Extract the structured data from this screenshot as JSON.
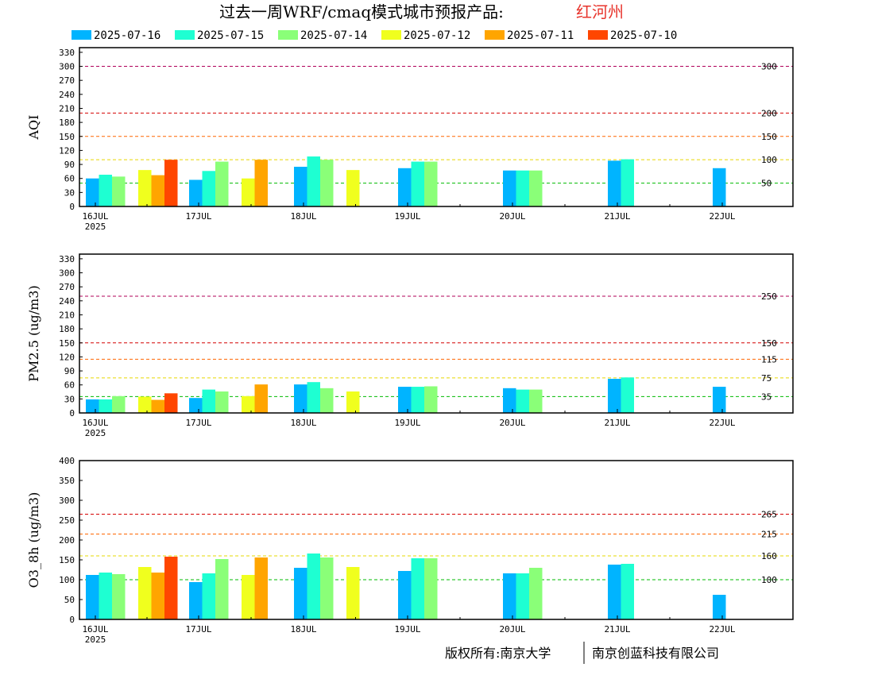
{
  "header": {
    "title": "过去一周WRF/cmaq模式城市预报产品:",
    "city": "红河州",
    "city_color": "#e8342c"
  },
  "legend": [
    {
      "label": "2025-07-16",
      "color": "#00b4ff"
    },
    {
      "label": "2025-07-15",
      "color": "#1effd2"
    },
    {
      "label": "2025-07-14",
      "color": "#8aff78"
    },
    {
      "label": "2025-07-12",
      "color": "#f0ff1e"
    },
    {
      "label": "2025-07-11",
      "color": "#ffa500"
    },
    {
      "label": "2025-07-10",
      "color": "#ff4600"
    }
  ],
  "footer": {
    "left": "版权所有:南京大学",
    "right": "南京创蓝科技有限公司"
  },
  "chart_data": [
    {
      "type": "bar",
      "ylabel": "AQI",
      "ylim": [
        0,
        340
      ],
      "yticks": [
        0,
        30,
        60,
        90,
        120,
        150,
        180,
        210,
        240,
        270,
        300,
        330
      ],
      "date_labels": [
        "16JUL",
        "17JUL",
        "18JUL",
        "19JUL",
        "20JUL",
        "21JUL",
        "22JUL"
      ],
      "year_label": "2025",
      "thresholds": [
        {
          "value": 300,
          "label": "300",
          "color": "#b0005a"
        },
        {
          "value": 200,
          "label": "200",
          "color": "#d40000"
        },
        {
          "value": 150,
          "label": "150",
          "color": "#ff6600"
        },
        {
          "value": 100,
          "label": "100",
          "color": "#e6d800"
        },
        {
          "value": 50,
          "label": "50",
          "color": "#00bb00"
        }
      ],
      "groups": [
        {
          "day": 0,
          "slot": 0,
          "values": [
            60,
            68,
            64,
            null,
            null,
            null
          ]
        },
        {
          "day": 0,
          "slot": 1,
          "values": [
            null,
            null,
            null,
            78,
            67,
            100
          ]
        },
        {
          "day": 1,
          "slot": 0,
          "values": [
            57,
            76,
            96,
            null,
            null,
            null
          ]
        },
        {
          "day": 1,
          "slot": 1,
          "values": [
            null,
            null,
            null,
            60,
            100,
            null
          ]
        },
        {
          "day": 2,
          "slot": 0,
          "values": [
            85,
            107,
            100,
            null,
            null,
            null
          ]
        },
        {
          "day": 2,
          "slot": 1,
          "values": [
            null,
            null,
            null,
            78,
            null,
            null
          ]
        },
        {
          "day": 3,
          "slot": 0,
          "values": [
            82,
            96,
            96,
            null,
            null,
            null
          ]
        },
        {
          "day": 4,
          "slot": 0,
          "values": [
            77,
            77,
            77,
            null,
            null,
            null
          ]
        },
        {
          "day": 5,
          "slot": 0,
          "values": [
            98,
            101,
            null,
            null,
            null,
            null
          ]
        },
        {
          "day": 6,
          "slot": 0,
          "values": [
            82,
            null,
            null,
            null,
            null,
            null
          ]
        }
      ]
    },
    {
      "type": "bar",
      "ylabel": "PM2.5 (ug/m3)",
      "ylim": [
        0,
        340
      ],
      "yticks": [
        0,
        30,
        60,
        90,
        120,
        150,
        180,
        210,
        240,
        270,
        300,
        330
      ],
      "date_labels": [
        "16JUL",
        "17JUL",
        "18JUL",
        "19JUL",
        "20JUL",
        "21JUL",
        "22JUL"
      ],
      "year_label": "2025",
      "thresholds": [
        {
          "value": 250,
          "label": "250",
          "color": "#b0005a"
        },
        {
          "value": 150,
          "label": "150",
          "color": "#d40000"
        },
        {
          "value": 115,
          "label": "115",
          "color": "#ff6600"
        },
        {
          "value": 75,
          "label": "75",
          "color": "#e6d800"
        },
        {
          "value": 35,
          "label": "35",
          "color": "#00bb00"
        }
      ],
      "groups": [
        {
          "day": 0,
          "slot": 0,
          "values": [
            29,
            29,
            36,
            null,
            null,
            null
          ]
        },
        {
          "day": 0,
          "slot": 1,
          "values": [
            null,
            null,
            null,
            35,
            28,
            42
          ]
        },
        {
          "day": 1,
          "slot": 0,
          "values": [
            32,
            50,
            46,
            null,
            null,
            null
          ]
        },
        {
          "day": 1,
          "slot": 1,
          "values": [
            null,
            null,
            null,
            36,
            61,
            null
          ]
        },
        {
          "day": 2,
          "slot": 0,
          "values": [
            61,
            66,
            53,
            null,
            null,
            null
          ]
        },
        {
          "day": 2,
          "slot": 1,
          "values": [
            null,
            null,
            null,
            46,
            null,
            null
          ]
        },
        {
          "day": 3,
          "slot": 0,
          "values": [
            56,
            56,
            57,
            null,
            null,
            null
          ]
        },
        {
          "day": 4,
          "slot": 0,
          "values": [
            53,
            50,
            50,
            null,
            null,
            null
          ]
        },
        {
          "day": 5,
          "slot": 0,
          "values": [
            73,
            76,
            null,
            null,
            null,
            null
          ]
        },
        {
          "day": 6,
          "slot": 0,
          "values": [
            56,
            null,
            null,
            null,
            null,
            null
          ]
        }
      ]
    },
    {
      "type": "bar",
      "ylabel": "O3_8h (ug/m3)",
      "ylim": [
        0,
        400
      ],
      "yticks": [
        0,
        50,
        100,
        150,
        200,
        250,
        300,
        350,
        400
      ],
      "date_labels": [
        "16JUL",
        "17JUL",
        "18JUL",
        "19JUL",
        "20JUL",
        "21JUL",
        "22JUL"
      ],
      "year_label": "2025",
      "thresholds": [
        {
          "value": 265,
          "label": "265",
          "color": "#d40000"
        },
        {
          "value": 215,
          "label": "215",
          "color": "#ff6600"
        },
        {
          "value": 160,
          "label": "160",
          "color": "#e6d800"
        },
        {
          "value": 100,
          "label": "100",
          "color": "#00bb00"
        }
      ],
      "groups": [
        {
          "day": 0,
          "slot": 0,
          "values": [
            112,
            118,
            114,
            null,
            null,
            null
          ]
        },
        {
          "day": 0,
          "slot": 1,
          "values": [
            null,
            null,
            null,
            132,
            118,
            158
          ]
        },
        {
          "day": 1,
          "slot": 0,
          "values": [
            94,
            116,
            152,
            null,
            null,
            null
          ]
        },
        {
          "day": 1,
          "slot": 1,
          "values": [
            null,
            null,
            null,
            112,
            156,
            null
          ]
        },
        {
          "day": 2,
          "slot": 0,
          "values": [
            130,
            166,
            156,
            null,
            null,
            null
          ]
        },
        {
          "day": 2,
          "slot": 1,
          "values": [
            null,
            null,
            null,
            132,
            null,
            null
          ]
        },
        {
          "day": 3,
          "slot": 0,
          "values": [
            122,
            154,
            154,
            null,
            null,
            null
          ]
        },
        {
          "day": 4,
          "slot": 0,
          "values": [
            116,
            116,
            130,
            null,
            null,
            null
          ]
        },
        {
          "day": 5,
          "slot": 0,
          "values": [
            138,
            140,
            null,
            null,
            null,
            null
          ]
        },
        {
          "day": 6,
          "slot": 0,
          "values": [
            62,
            null,
            null,
            null,
            null,
            null
          ]
        }
      ]
    }
  ]
}
